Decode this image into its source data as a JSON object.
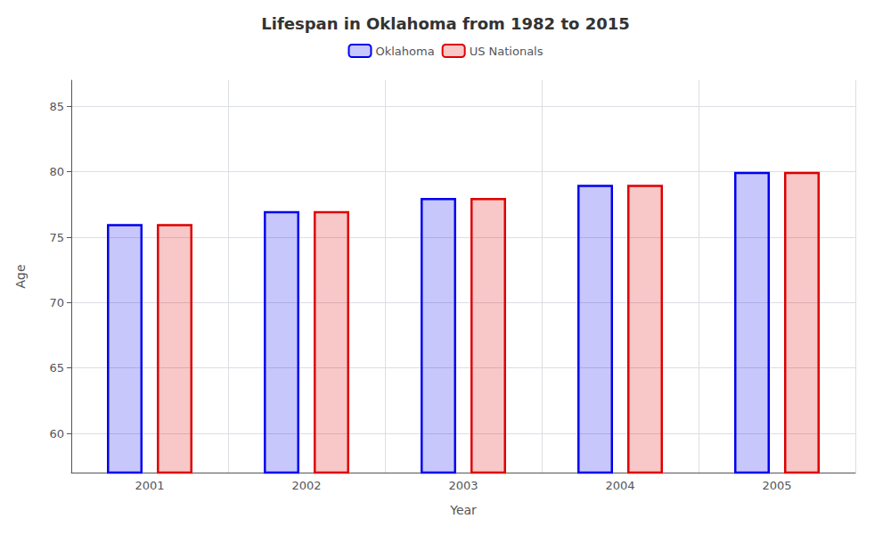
{
  "chart_data": {
    "type": "bar",
    "title": "Lifespan in Oklahoma from 1982 to 2015",
    "xlabel": "Year",
    "ylabel": "Age",
    "categories": [
      2001,
      2002,
      2003,
      2004,
      2005
    ],
    "series": [
      {
        "name": "Oklahoma",
        "color": "#0000ee",
        "values": [
          76,
          77,
          78,
          79,
          80
        ]
      },
      {
        "name": "US Nationals",
        "color": "#dd0000",
        "values": [
          76,
          77,
          78,
          79,
          80
        ]
      }
    ],
    "ylim": [
      57,
      87
    ],
    "yticks": [
      60,
      65,
      70,
      75,
      80,
      85
    ],
    "grid": true,
    "legend": "top"
  }
}
